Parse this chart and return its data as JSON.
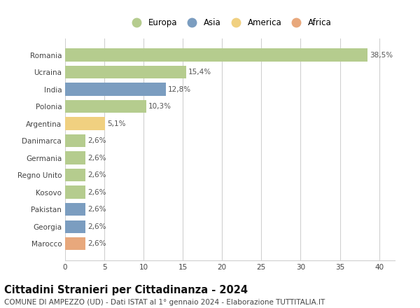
{
  "countries": [
    "Romania",
    "Ucraina",
    "India",
    "Polonia",
    "Argentina",
    "Danimarca",
    "Germania",
    "Regno Unito",
    "Kosovo",
    "Pakistan",
    "Georgia",
    "Marocco"
  ],
  "values": [
    38.5,
    15.4,
    12.8,
    10.3,
    5.1,
    2.6,
    2.6,
    2.6,
    2.6,
    2.6,
    2.6,
    2.6
  ],
  "labels": [
    "38,5%",
    "15,4%",
    "12,8%",
    "10,3%",
    "5,1%",
    "2,6%",
    "2,6%",
    "2,6%",
    "2,6%",
    "2,6%",
    "2,6%",
    "2,6%"
  ],
  "continents": [
    "Europa",
    "Europa",
    "Asia",
    "Europa",
    "America",
    "Europa",
    "Europa",
    "Europa",
    "Europa",
    "Asia",
    "Asia",
    "Africa"
  ],
  "colors": {
    "Europa": "#b5cc8e",
    "Asia": "#7b9dc0",
    "America": "#f0d080",
    "Africa": "#e8a87c"
  },
  "legend_order": [
    "Europa",
    "Asia",
    "America",
    "Africa"
  ],
  "xlim": [
    0,
    42
  ],
  "xticks": [
    0,
    5,
    10,
    15,
    20,
    25,
    30,
    35,
    40
  ],
  "title": "Cittadini Stranieri per Cittadinanza - 2024",
  "subtitle": "COMUNE DI AMPEZZO (UD) - Dati ISTAT al 1° gennaio 2024 - Elaborazione TUTTITALIA.IT",
  "background_color": "#ffffff",
  "grid_color": "#d0d0d0",
  "bar_height": 0.75,
  "title_fontsize": 10.5,
  "subtitle_fontsize": 7.5,
  "tick_fontsize": 7.5,
  "label_fontsize": 7.5,
  "legend_fontsize": 8.5
}
